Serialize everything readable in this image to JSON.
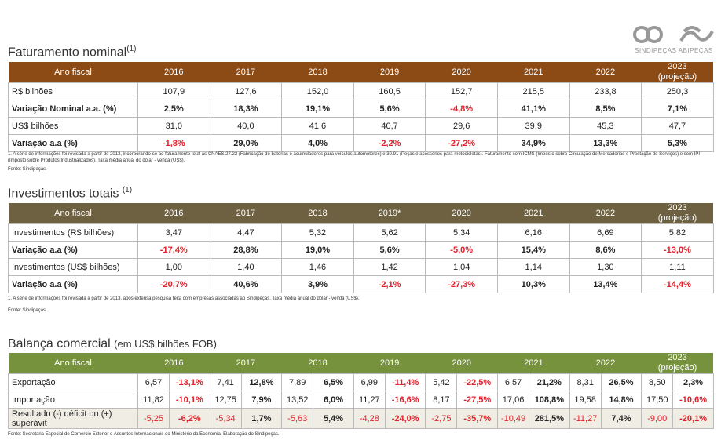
{
  "logo": {
    "text": "SINDIPEÇAS ABIPEÇAS"
  },
  "faturamento": {
    "title": "Faturamento nominal",
    "sup": "(1)",
    "header": [
      "Ano fiscal",
      "2016",
      "2017",
      "2018",
      "2019",
      "2020",
      "2021",
      "2022",
      "2023\n(projeção)"
    ],
    "rows": [
      {
        "label": "R$ bilhões",
        "bold": false,
        "values": [
          "107,9",
          "127,6",
          "152,0",
          "160,5",
          "152,7",
          "215,5",
          "233,8",
          "250,3"
        ]
      },
      {
        "label": "Variação Nominal a.a. (%)",
        "bold": true,
        "values": [
          "2,5%",
          "18,3%",
          "19,1%",
          "5,6%",
          "-4,8%",
          "41,1%",
          "8,5%",
          "7,1%"
        ]
      },
      {
        "label": "US$ bilhões",
        "bold": false,
        "values": [
          "31,0",
          "40,0",
          "41,6",
          "40,7",
          "29,6",
          "39,9",
          "45,3",
          "47,7"
        ]
      },
      {
        "label": "Variação a.a (%)",
        "bold": true,
        "values": [
          "-1,8%",
          "29,0%",
          "4,0%",
          "-2,2%",
          "-27,2%",
          "34,9%",
          "13,3%",
          "5,3%"
        ]
      }
    ],
    "note": "1. A série de informações foi revisada a partir de 2013, incorporando-se ao faturamento total as CNAES 27.22 (Fabricação de baterias e acumuladores para veículos automotores) e 30.91 (Peças e acessórios para motocicletas). Faturamento com ICMS (Imposto sobre Circulação de Mercadorias e Prestação de Serviços) e sem IPI (Imposto sobre Produtos Industrializados). Taxa média anual do dólar - venda (US$).",
    "source": "Fonte: Sindipeças."
  },
  "investimentos": {
    "title": "Investimentos totais ",
    "sup": "(1)",
    "header": [
      "Ano fiscal",
      "2016",
      "2017",
      "2018",
      "2019*",
      "2020",
      "2021",
      "2022",
      "2023\n(projeção)"
    ],
    "rows": [
      {
        "label": "Investimentos (R$ bilhões)",
        "bold": false,
        "values": [
          "3,47",
          "4,47",
          "5,32",
          "5,62",
          "5,34",
          "6,16",
          "6,69",
          "5,82"
        ]
      },
      {
        "label": "Variação a.a (%)",
        "bold": true,
        "values": [
          "-17,4%",
          "28,8%",
          "19,0%",
          "5,6%",
          "-5,0%",
          "15,4%",
          "8,6%",
          "-13,0%"
        ]
      },
      {
        "label": "Investimentos (US$ bilhões)",
        "bold": false,
        "values": [
          "1,00",
          "1,40",
          "1,46",
          "1,42",
          "1,04",
          "1,14",
          "1,30",
          "1,11"
        ]
      },
      {
        "label": "Variação a.a (%)",
        "bold": true,
        "values": [
          "-20,7%",
          "40,6%",
          "3,9%",
          "-2,1%",
          "-27,3%",
          "10,3%",
          "13,4%",
          "-14,4%"
        ]
      }
    ],
    "note": "1. A série de informações foi revisada a partir de 2013, após extensa pesquisa feita com empresas associadas ao Sindipeças. Taxa média anual do dólar - venda (US$).",
    "source": "Fonte: Sindipeças."
  },
  "balanca": {
    "title": "Balança comercial ",
    "subtitle": "(em US$ bilhões FOB)",
    "header": [
      "Ano fiscal",
      "2016",
      "2017",
      "2018",
      "2019",
      "2020",
      "2021",
      "2022",
      "2023\n(projeção)"
    ],
    "rows": [
      {
        "label": "Exportação",
        "values": [
          "6,57",
          "-13,1%",
          "7,41",
          "12,8%",
          "7,89",
          "6,5%",
          "6,99",
          "-11,4%",
          "5,42",
          "-22,5%",
          "6,57",
          "21,2%",
          "8,31",
          "26,5%",
          "8,50",
          "2,3%"
        ]
      },
      {
        "label": "Importação",
        "values": [
          "11,82",
          "-10,1%",
          "12,75",
          "7,9%",
          "13,52",
          "6,0%",
          "11,27",
          "-16,6%",
          "8,17",
          "-27,5%",
          "17,06",
          "108,8%",
          "19,58",
          "14,8%",
          "17,50",
          "-10,6%"
        ]
      },
      {
        "label": "Resultado (-) déficit ou (+) superávit",
        "values": [
          "-5,25",
          "-6,2%",
          "-5,34",
          "1,7%",
          "-5,63",
          "5,4%",
          "-4,28",
          "-24,0%",
          "-2,75",
          "-35,7%",
          "-10,49",
          "281,5%",
          "-11,27",
          "7,4%",
          "-9,00",
          "-20,1%"
        ]
      }
    ],
    "source": "Fonte: Secretaria Especial de Comércio Exterior e Assuntos Internacionais do Ministério da Economia. Elaboração do Sindipeças."
  }
}
